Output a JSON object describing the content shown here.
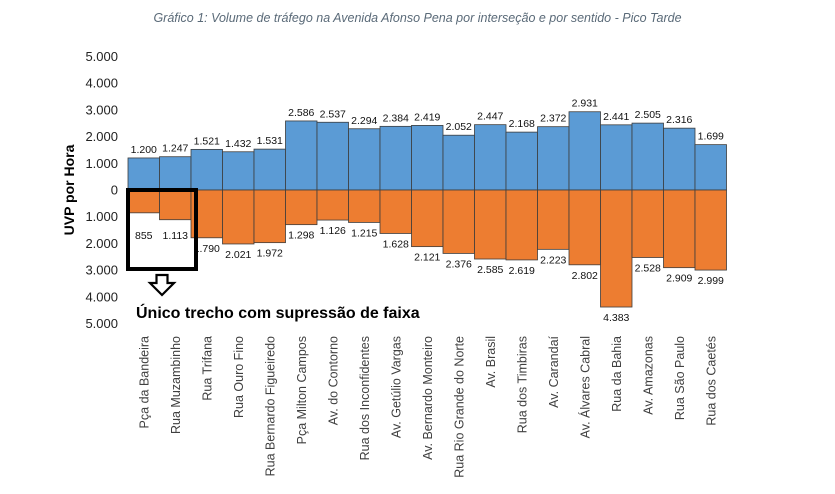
{
  "chart_data": {
    "type": "bar",
    "title": "Gráfico 1: Volume de tráfego na Avenida Afonso Pena por interseção e por sentido - Pico Tarde",
    "ylabel": "UVP por Hora",
    "ylim": [
      -5000,
      5000
    ],
    "ytick_labels": [
      "5.000",
      "4.000",
      "3.000",
      "2.000",
      "1.000",
      "0",
      "1.000",
      "2.000",
      "3.000",
      "4.000",
      "5.000"
    ],
    "categories": [
      "Pça da Bandeira",
      "Rua Muzambinho",
      "Rua Trifana",
      "Rua Ouro Fino",
      "Rua Bernardo Figueiredo",
      "Pça Milton Campos",
      "Av. do Contorno",
      "Rua dos Inconfidentes",
      "Av. Getúlio Vargas",
      "Av. Bernardo Monteiro",
      "Rua Rio Grande do Norte",
      "Av. Brasil",
      "Rua dos Timbiras",
      "Av. Carandaí",
      "Av. Álvares Cabral",
      "Rua da Bahia",
      "Av. Amazonas",
      "Rua São Paulo",
      "Rua dos Caetés"
    ],
    "series": [
      {
        "color": "#5b9bd5",
        "values": [
          1200,
          1247,
          1521,
          1432,
          1531,
          2586,
          2537,
          2294,
          2384,
          2419,
          2052,
          2447,
          2168,
          2372,
          2931,
          2441,
          2505,
          2316,
          1699
        ],
        "labels": [
          "1.200",
          "1.247",
          "1.521",
          "1.432",
          "1.531",
          "2.586",
          "2.537",
          "2.294",
          "2.384",
          "2.419",
          "2.052",
          "2.447",
          "2.168",
          "2.372",
          "2.931",
          "2.441",
          "2.505",
          "2.316",
          "1.699"
        ]
      },
      {
        "color": "#ed7d31",
        "values": [
          -855,
          -1113,
          -1790,
          -2021,
          -1972,
          -1298,
          -1126,
          -1215,
          -1628,
          -2121,
          -2376,
          -2585,
          -2619,
          -2223,
          -2802,
          -4383,
          -2528,
          -2909,
          -2999
        ],
        "labels": [
          "855",
          "1.113",
          "1.790",
          "2.021",
          "1.972",
          "1.298",
          "1.126",
          "1.215",
          "1.628",
          "2.121",
          "2.376",
          "2.585",
          "2.619",
          "2.223",
          "2.802",
          "4.383",
          "2.528",
          "2.909",
          "2.999"
        ]
      }
    ],
    "annotation": "Único trecho com supressão de faixa",
    "grid": false,
    "legend": "none"
  }
}
